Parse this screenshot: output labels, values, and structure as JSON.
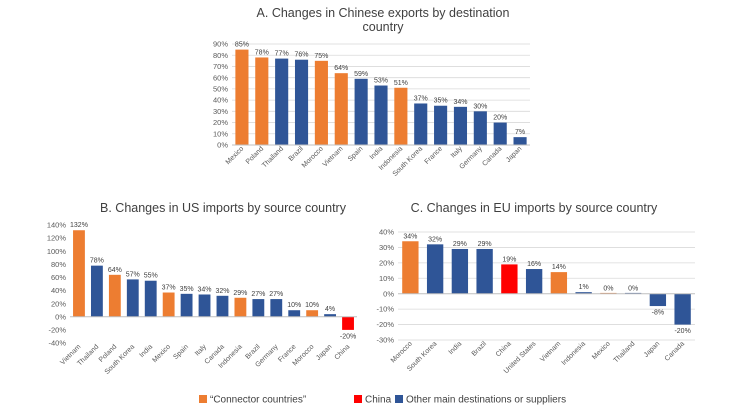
{
  "colors": {
    "connector": "#ED7D31",
    "china": "#FF0000",
    "other": "#2F5597",
    "grid": "#D9D9D9",
    "axis": "#BFBFBF"
  },
  "legend": [
    {
      "key": "connector",
      "label": "“Connector countries”"
    },
    {
      "key": "china",
      "label": "China"
    },
    {
      "key": "other",
      "label": "Other main destinations or suppliers"
    }
  ],
  "chart_data": [
    {
      "type": "bar",
      "title": "A. Changes in Chinese exports by destination country",
      "title_lines": [
        "A. Changes in Chinese exports by destination",
        "country"
      ],
      "categories": [
        "Mexico",
        "Poland",
        "Thailand",
        "Brazil",
        "Morocco",
        "Vietnam",
        "Spain",
        "India",
        "Indonesia",
        "South Korea",
        "France",
        "Italy",
        "Germany",
        "Canada",
        "Japan"
      ],
      "values": [
        85,
        78,
        77,
        76,
        75,
        64,
        59,
        53,
        51,
        37,
        35,
        34,
        30,
        20,
        7
      ],
      "groups": [
        "connector",
        "connector",
        "other",
        "other",
        "connector",
        "connector",
        "other",
        "other",
        "connector",
        "other",
        "other",
        "other",
        "other",
        "other",
        "other"
      ],
      "value_labels": [
        "85%",
        "78%",
        "77%",
        "76%",
        "75%",
        "64%",
        "59%",
        "53%",
        "51%",
        "37%",
        "35%",
        "34%",
        "30%",
        "20%",
        "7%"
      ],
      "ylim": [
        0,
        90
      ],
      "yticks": [
        0,
        10,
        20,
        30,
        40,
        50,
        60,
        70,
        80,
        90
      ],
      "ytick_labels": [
        "0%",
        "10%",
        "20%",
        "30%",
        "40%",
        "50%",
        "60%",
        "70%",
        "80%",
        "90%"
      ],
      "grid": true
    },
    {
      "type": "bar",
      "title": "B. Changes in US imports by source country",
      "title_lines": [
        "B. Changes in US imports by source country"
      ],
      "categories": [
        "Vietnam",
        "Thailand",
        "Poland",
        "South Korea",
        "India",
        "Mexico",
        "Spain",
        "Italy",
        "Canada",
        "Indonesia",
        "Brazil",
        "Germany",
        "France",
        "Morocco",
        "Japan",
        "China"
      ],
      "values": [
        132,
        78,
        64,
        57,
        55,
        37,
        35,
        34,
        32,
        29,
        27,
        27,
        10,
        10,
        4,
        -20
      ],
      "groups": [
        "connector",
        "other",
        "connector",
        "other",
        "other",
        "connector",
        "other",
        "other",
        "other",
        "connector",
        "other",
        "other",
        "other",
        "connector",
        "other",
        "china"
      ],
      "value_labels": [
        "132%",
        "78%",
        "64%",
        "57%",
        "55%",
        "37%",
        "35%",
        "34%",
        "32%",
        "29%",
        "27%",
        "27%",
        "10%",
        "10%",
        "4%",
        "-20%"
      ],
      "ylim": [
        -40,
        140
      ],
      "yticks": [
        -40,
        -20,
        0,
        20,
        40,
        60,
        80,
        100,
        120,
        140
      ],
      "ytick_labels": [
        "-40%",
        "-20%",
        "0%",
        "20%",
        "40%",
        "60%",
        "80%",
        "100%",
        "120%",
        "140%"
      ],
      "grid": false
    },
    {
      "type": "bar",
      "title": "C. Changes in EU imports by source country",
      "title_lines": [
        "C. Changes in EU imports by source country"
      ],
      "categories": [
        "Morocco",
        "South Korea",
        "India",
        "Brazil",
        "China",
        "United States",
        "Vietnam",
        "Indonesia",
        "Mexico",
        "Thailand",
        "Japan",
        "Canada"
      ],
      "values": [
        34,
        32,
        29,
        29,
        19,
        16,
        14,
        1,
        0,
        0,
        -8,
        -20
      ],
      "groups": [
        "connector",
        "other",
        "other",
        "other",
        "china",
        "other",
        "connector",
        "other",
        "connector",
        "other",
        "other",
        "other"
      ],
      "value_labels": [
        "34%",
        "32%",
        "29%",
        "29%",
        "19%",
        "16%",
        "14%",
        "1%",
        "0%",
        "0%",
        "-8%",
        "-20%"
      ],
      "ylim": [
        -30,
        40
      ],
      "yticks": [
        -30,
        -20,
        -10,
        0,
        10,
        20,
        30,
        40
      ],
      "ytick_labels": [
        "-30%",
        "-20%",
        "-10%",
        "0%",
        "10%",
        "20%",
        "30%",
        "40%"
      ],
      "grid": true
    }
  ]
}
